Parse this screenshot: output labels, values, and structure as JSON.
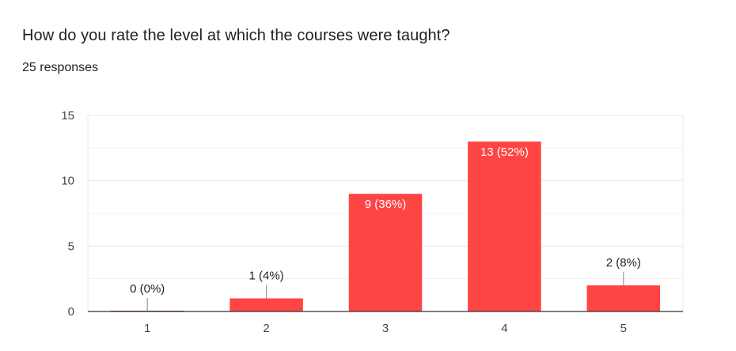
{
  "question": {
    "title": "How do you rate the level at which the courses were taught?",
    "responses": "25 responses"
  },
  "colors": {
    "bar": "#ff4444",
    "grid": "#e8e8e8",
    "axis": "#333333",
    "text": "#202124",
    "inside_label": "#ffffff",
    "outside_label": "#222222"
  },
  "chart_data": {
    "type": "bar",
    "categories": [
      "1",
      "2",
      "3",
      "4",
      "5"
    ],
    "values": [
      0,
      1,
      9,
      13,
      2
    ],
    "data_labels": [
      "0 (0%)",
      "1 (4%)",
      "9 (36%)",
      "13 (52%)",
      "2 (8%)"
    ],
    "ylim": [
      0,
      15
    ],
    "yticks": [
      "0",
      "5",
      "10",
      "15"
    ],
    "ytick_values": [
      0,
      5,
      10,
      15
    ],
    "minor_grid_values": [
      2.5,
      7.5,
      12.5
    ],
    "grid": true,
    "legend": "none",
    "title": "",
    "xlabel": "",
    "ylabel": ""
  }
}
